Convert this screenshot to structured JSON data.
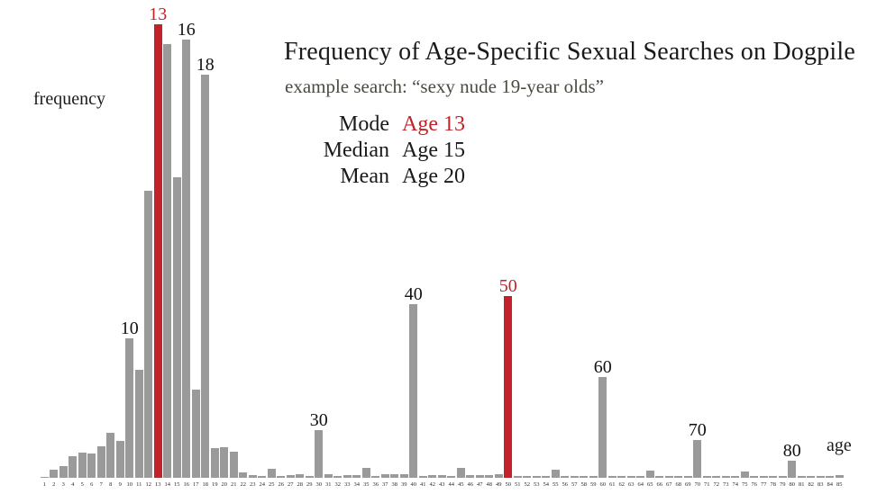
{
  "title": "Frequency of Age-Specific Sexual Searches on Dogpile",
  "subtitle": "example search: “sexy nude 19-year olds”",
  "stats": [
    {
      "label": "Mode",
      "value": "Age 13",
      "highlight": true
    },
    {
      "label": "Median",
      "value": "Age 15",
      "highlight": false
    },
    {
      "label": "Mean",
      "value": "Age 20",
      "highlight": false
    }
  ],
  "axis": {
    "y_label": "frequency",
    "x_label": "age"
  },
  "colors": {
    "bar": "#9a9a9a",
    "highlight": "#c4222a",
    "text": "#1b1a19",
    "subtitle_text": "#4b4a41",
    "background": "#ffffff"
  },
  "chart_data": {
    "type": "bar",
    "title": "Frequency of Age-Specific Sexual Searches on Dogpile",
    "subtitle": "example search: “sexy nude 19-year olds”",
    "xlabel": "age",
    "ylabel": "frequency",
    "y_units": "relative frequency (y-axis unlabeled; values are relative bar heights in px)",
    "x_tick_start": 1,
    "x_tick_end": 85,
    "x_tick_step": 1,
    "grid": false,
    "legend": "none",
    "values": [
      1,
      9,
      13,
      24,
      28,
      27,
      35,
      50,
      41,
      155,
      120,
      319,
      504,
      482,
      334,
      487,
      98,
      448,
      33,
      34,
      29,
      6,
      3,
      2,
      10,
      2,
      3,
      4,
      2,
      53,
      4,
      2,
      3,
      3,
      11,
      2,
      4,
      4,
      4,
      193,
      2,
      3,
      3,
      2,
      11,
      3,
      3,
      3,
      4,
      202,
      2,
      2,
      2,
      2,
      9,
      2,
      2,
      2,
      2,
      112,
      2,
      2,
      2,
      2,
      8,
      2,
      2,
      2,
      2,
      42,
      2,
      2,
      2,
      2,
      7,
      2,
      2,
      2,
      2,
      19,
      2,
      2,
      2,
      2,
      3
    ],
    "highlighted_ages": [
      13,
      50
    ],
    "annotations": [
      {
        "age": 10,
        "label": "10"
      },
      {
        "age": 13,
        "label": "13"
      },
      {
        "age": 16,
        "label": "16"
      },
      {
        "age": 18,
        "label": "18"
      },
      {
        "age": 30,
        "label": "30"
      },
      {
        "age": 40,
        "label": "40"
      },
      {
        "age": 50,
        "label": "50"
      },
      {
        "age": 60,
        "label": "60"
      },
      {
        "age": 70,
        "label": "70"
      },
      {
        "age": 80,
        "label": "80"
      }
    ],
    "summary_stats": {
      "mode": 13,
      "median": 15,
      "mean": 20
    }
  }
}
